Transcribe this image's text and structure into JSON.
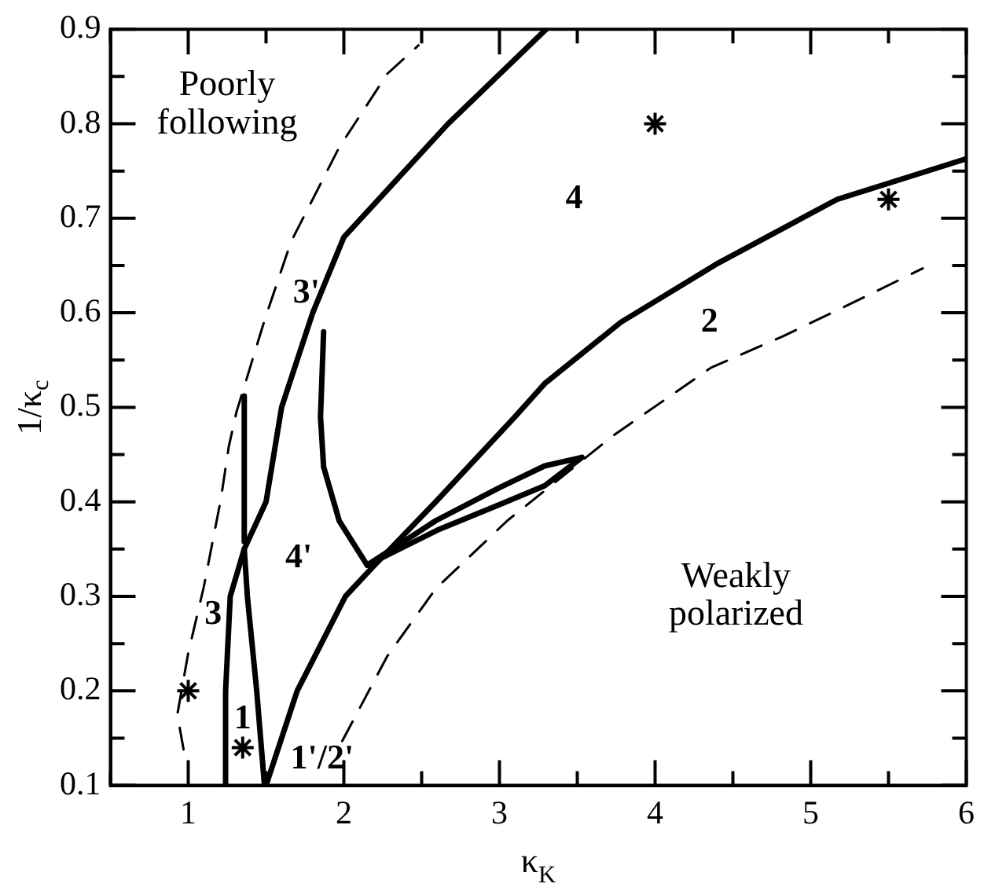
{
  "chart_data": {
    "type": "line",
    "xlabel": "κ$_{K}$",
    "ylabel": "1/κ$_{c}$",
    "xlim": [
      0.5,
      6
    ],
    "ylim": [
      0.1,
      0.9
    ],
    "xticks": [
      {
        "value": 0.5,
        "label": null
      },
      1,
      {
        "value": 1.5,
        "label": null
      },
      2,
      {
        "value": 2.5,
        "label": null
      },
      3,
      {
        "value": 3.5,
        "label": null
      },
      4,
      {
        "value": 4.5,
        "label": null
      },
      5,
      {
        "value": 5.5,
        "label": null
      },
      6
    ],
    "yticks": [
      0.1,
      {
        "value": 0.15,
        "label": null
      },
      0.2,
      {
        "value": 0.25,
        "label": null
      },
      0.3,
      {
        "value": 0.35,
        "label": null
      },
      0.4,
      {
        "value": 0.45,
        "label": null
      },
      0.5,
      {
        "value": 0.55,
        "label": null
      },
      0.6,
      {
        "value": 0.65,
        "label": null
      },
      0.7,
      {
        "value": 0.75,
        "label": null
      },
      0.8,
      {
        "value": 0.85,
        "label": null
      },
      0.9
    ],
    "grid": false,
    "legend": false,
    "marker": "none",
    "series": [
      {
        "color": "#000000",
        "line_style": "solid",
        "x": [
          1.24,
          1.24,
          1.27,
          1.36,
          1.5,
          1.6,
          1.8,
          2.0,
          2.67,
          3.3
        ],
        "values": [
          0.1,
          0.2,
          0.3,
          0.35,
          0.4,
          0.5,
          0.6,
          0.68,
          0.8,
          0.9
        ]
      },
      {
        "color": "#000000",
        "line_style": "solid",
        "x": [
          1.49,
          1.44,
          1.38,
          1.36
        ],
        "values": [
          0.1,
          0.2,
          0.3,
          0.35
        ]
      },
      {
        "color": "#000000",
        "line_style": "solid",
        "x": [
          1.5,
          1.7,
          2.01,
          2.18,
          2.59,
          3.1,
          3.29,
          3.78,
          4.41,
          5.17,
          6.0
        ],
        "values": [
          0.1,
          0.2,
          0.3,
          0.33,
          0.4,
          0.49,
          0.525,
          0.59,
          0.653,
          0.72,
          0.763
        ]
      },
      {
        "color": "#000000",
        "line_style": "dashed",
        "x": [
          0.97,
          0.93,
          1.0,
          1.1,
          1.21,
          1.26,
          1.31,
          1.49,
          1.66,
          1.97,
          2.28,
          2.48
        ],
        "values": [
          0.138,
          0.175,
          0.24,
          0.31,
          0.403,
          0.458,
          0.495,
          0.592,
          0.675,
          0.775,
          0.853,
          0.883
        ]
      },
      {
        "color": "#000000",
        "line_style": "dashed",
        "x": [
          1.99,
          2.28,
          2.59,
          3.05,
          3.73,
          4.36,
          4.82,
          5.3,
          5.72
        ],
        "values": [
          0.147,
          0.237,
          0.308,
          0.38,
          0.47,
          0.542,
          0.575,
          0.613,
          0.647
        ]
      },
      {
        "color": "#000000",
        "line_style": "solid",
        "x": [
          1.36,
          1.36
        ],
        "values": [
          0.358,
          0.512
        ]
      },
      {
        "color": "#000000",
        "line_style": "solid",
        "x": [
          1.87,
          1.85,
          1.87,
          1.97,
          2.15
        ],
        "values": [
          0.58,
          0.49,
          0.437,
          0.38,
          0.333
        ]
      },
      {
        "color": "#000000",
        "line_style": "solid",
        "x": [
          2.15,
          2.59,
          3.0,
          3.29,
          3.53
        ],
        "values": [
          0.333,
          0.38,
          0.415,
          0.438,
          0.447
        ]
      },
      {
        "color": "#000000",
        "line_style": "solid",
        "x": [
          2.15,
          2.6,
          3.0,
          3.29,
          3.53
        ],
        "values": [
          0.333,
          0.37,
          0.397,
          0.417,
          0.447
        ]
      },
      {
        "type": "scatter",
        "marker": "cross",
        "color": "#000000",
        "x": [
          4.0,
          5.5,
          1.0,
          1.35
        ],
        "values": [
          0.8,
          0.72,
          0.2,
          0.14
        ]
      }
    ],
    "annotations": [
      "Poorly",
      "following",
      "Weakly",
      "polarized",
      "4",
      "2",
      "3'",
      "4'",
      "3",
      "1",
      "1'/2'"
    ]
  }
}
